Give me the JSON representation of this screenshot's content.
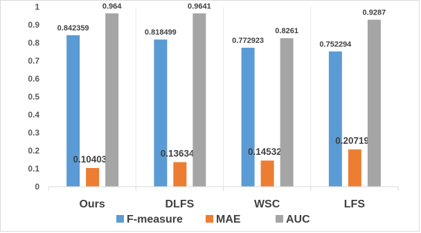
{
  "chart_data": {
    "type": "bar",
    "title": "",
    "xlabel": "",
    "ylabel": "",
    "categories": [
      "Ours",
      "DLFS",
      "WSC",
      "LFS"
    ],
    "series": [
      {
        "name": "F-measure",
        "color": "#5b9bd5",
        "values": [
          0.842359,
          0.818499,
          0.772923,
          0.752294
        ],
        "labels": [
          "0.842359",
          "0.818499",
          "0.772923",
          "0.752294"
        ]
      },
      {
        "name": "MAE",
        "color": "#ed7d31",
        "values": [
          0.104037,
          0.136345,
          0.145328,
          0.207197
        ],
        "labels": [
          "0.104037",
          "0.136345",
          "0.145328",
          "0.207197"
        ]
      },
      {
        "name": "AUC",
        "color": "#a5a5a5",
        "values": [
          0.964,
          0.9641,
          0.8261,
          0.9287
        ],
        "labels": [
          "0.964",
          "0.9641",
          "0.8261",
          "0.9287"
        ]
      }
    ],
    "ylim": [
      0,
      1
    ],
    "yticks": [
      "0",
      "0.1",
      "0.2",
      "0.3",
      "0.4",
      "0.5",
      "0.6",
      "0.7",
      "0.8",
      "0.9",
      "1"
    ],
    "grid": false,
    "legend": "bottom",
    "label_colors": {
      "default": "#404040",
      "emphasized": "#404040"
    }
  }
}
